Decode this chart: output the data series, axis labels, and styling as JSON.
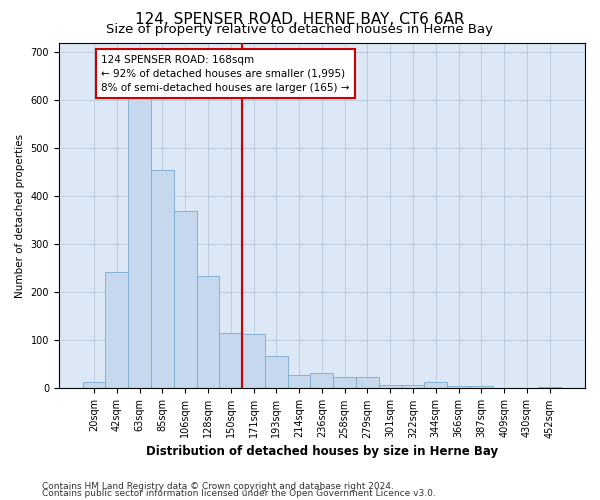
{
  "title": "124, SPENSER ROAD, HERNE BAY, CT6 6AR",
  "subtitle": "Size of property relative to detached houses in Herne Bay",
  "xlabel": "Distribution of detached houses by size in Herne Bay",
  "ylabel": "Number of detached properties",
  "categories": [
    "20sqm",
    "42sqm",
    "63sqm",
    "85sqm",
    "106sqm",
    "128sqm",
    "150sqm",
    "171sqm",
    "193sqm",
    "214sqm",
    "236sqm",
    "258sqm",
    "279sqm",
    "301sqm",
    "322sqm",
    "344sqm",
    "366sqm",
    "387sqm",
    "409sqm",
    "430sqm",
    "452sqm"
  ],
  "values": [
    14,
    243,
    625,
    455,
    370,
    235,
    115,
    113,
    68,
    28,
    33,
    23,
    23,
    8,
    8,
    14,
    5,
    5,
    0,
    0,
    4
  ],
  "bar_color": "#c5d8ee",
  "bar_edge_color": "#7aabcc",
  "vline_x_index": 7,
  "vline_color": "#cc0000",
  "annotation_text": "124 SPENSER ROAD: 168sqm\n← 92% of detached houses are smaller (1,995)\n8% of semi-detached houses are larger (165) →",
  "annotation_box_color": "#ffffff",
  "annotation_box_edge": "#cc0000",
  "ylim": [
    0,
    720
  ],
  "yticks": [
    0,
    100,
    200,
    300,
    400,
    500,
    600,
    700
  ],
  "bg_color": "#dce8f5",
  "footnote1": "Contains HM Land Registry data © Crown copyright and database right 2024.",
  "footnote2": "Contains public sector information licensed under the Open Government Licence v3.0.",
  "title_fontsize": 11,
  "subtitle_fontsize": 9.5,
  "xlabel_fontsize": 8.5,
  "ylabel_fontsize": 7.5,
  "tick_fontsize": 7,
  "annotation_fontsize": 7.5,
  "footnote_fontsize": 6.5
}
